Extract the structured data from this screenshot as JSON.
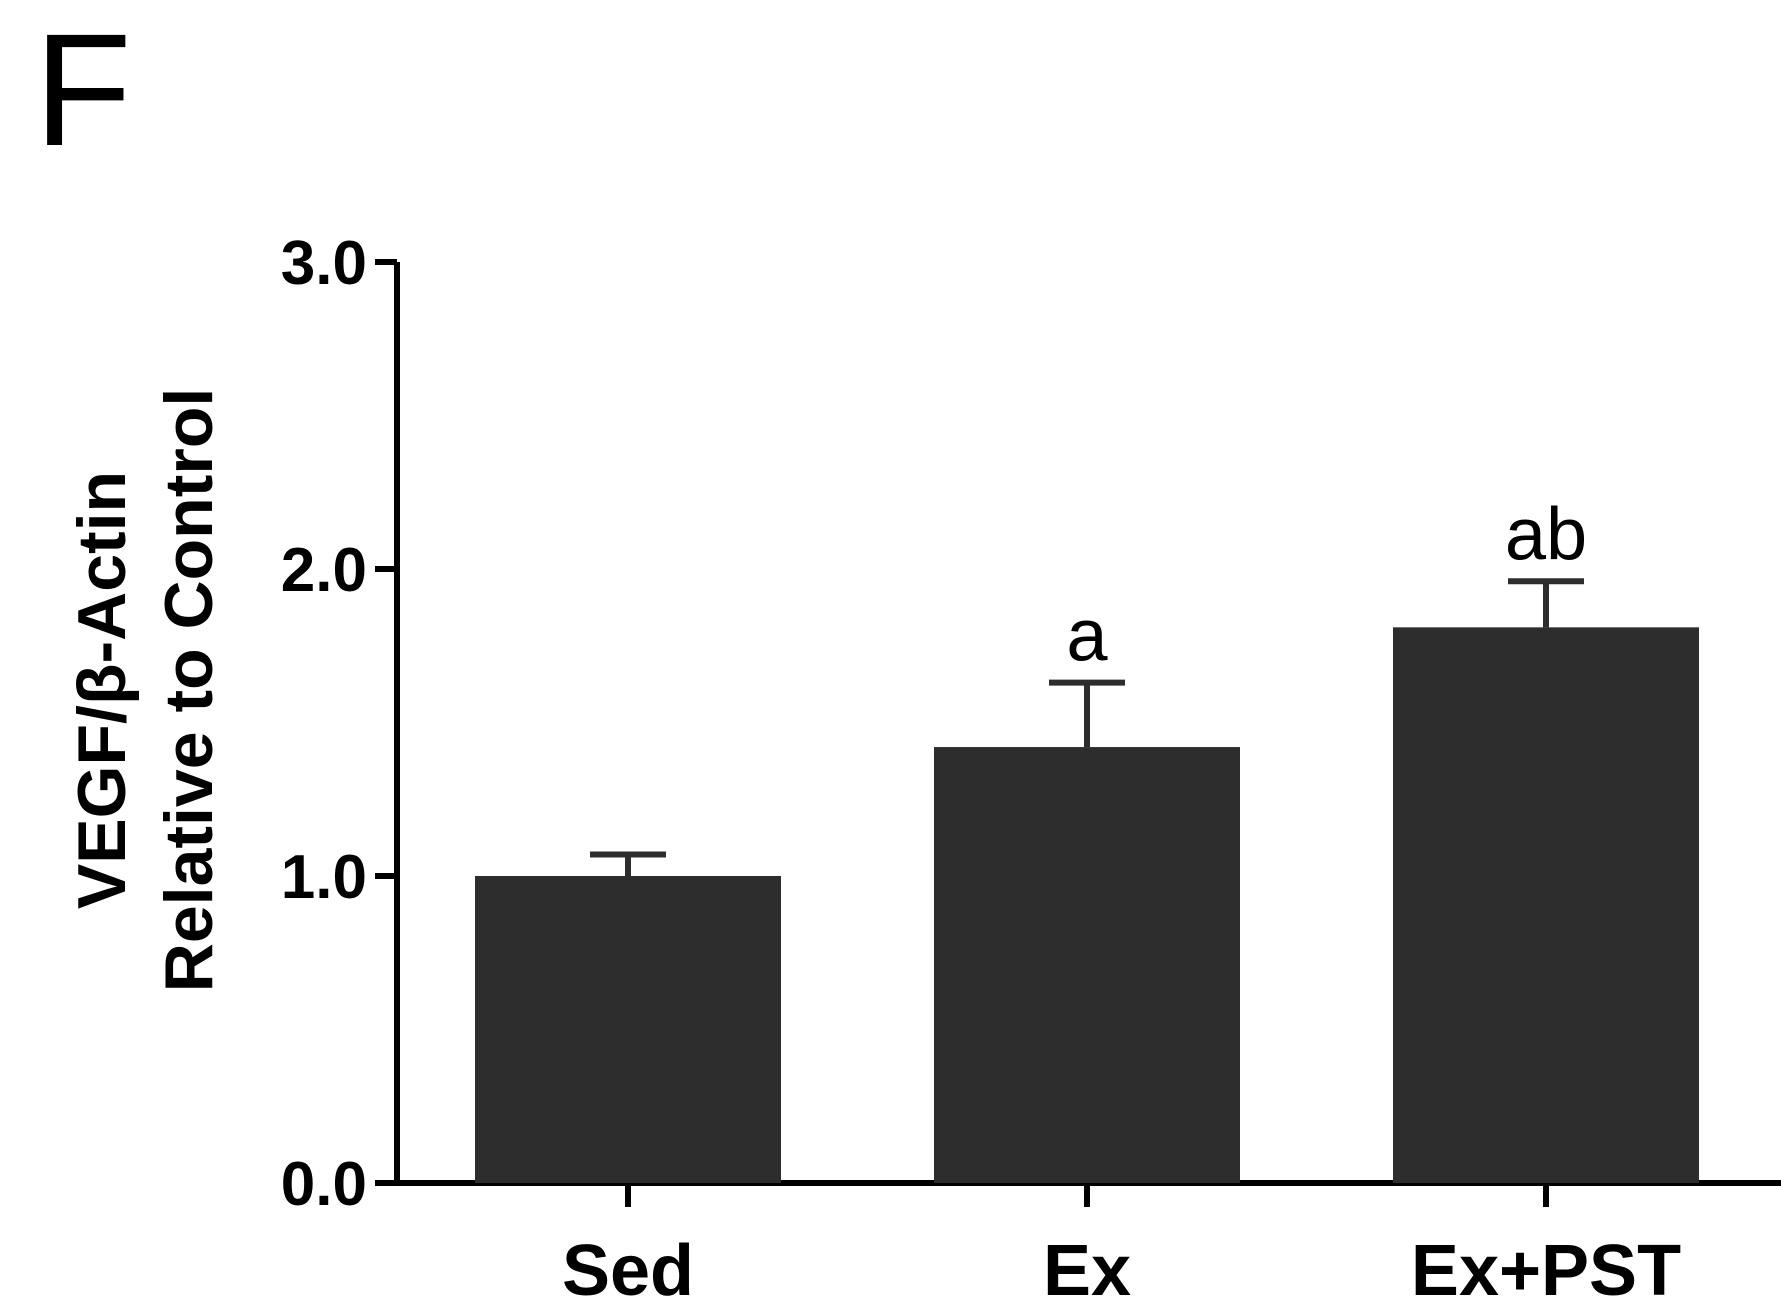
{
  "panel_label": "F",
  "chart_data": {
    "type": "bar",
    "categories": [
      "Sed",
      "Ex",
      "Ex+PST"
    ],
    "values": [
      1.0,
      1.42,
      1.81
    ],
    "errors": [
      0.07,
      0.21,
      0.15
    ],
    "significance": [
      "",
      "a",
      "ab"
    ],
    "ylabel_lines": [
      "VEGF/β-Actin",
      "Relative to Control"
    ],
    "xlabel": "",
    "title": "",
    "ylim": [
      0,
      3.0
    ],
    "yticks": [
      "0.0",
      "1.0",
      "2.0",
      "3.0"
    ],
    "bar_color": "#2d2d2d",
    "grid": false,
    "legend": "none"
  }
}
